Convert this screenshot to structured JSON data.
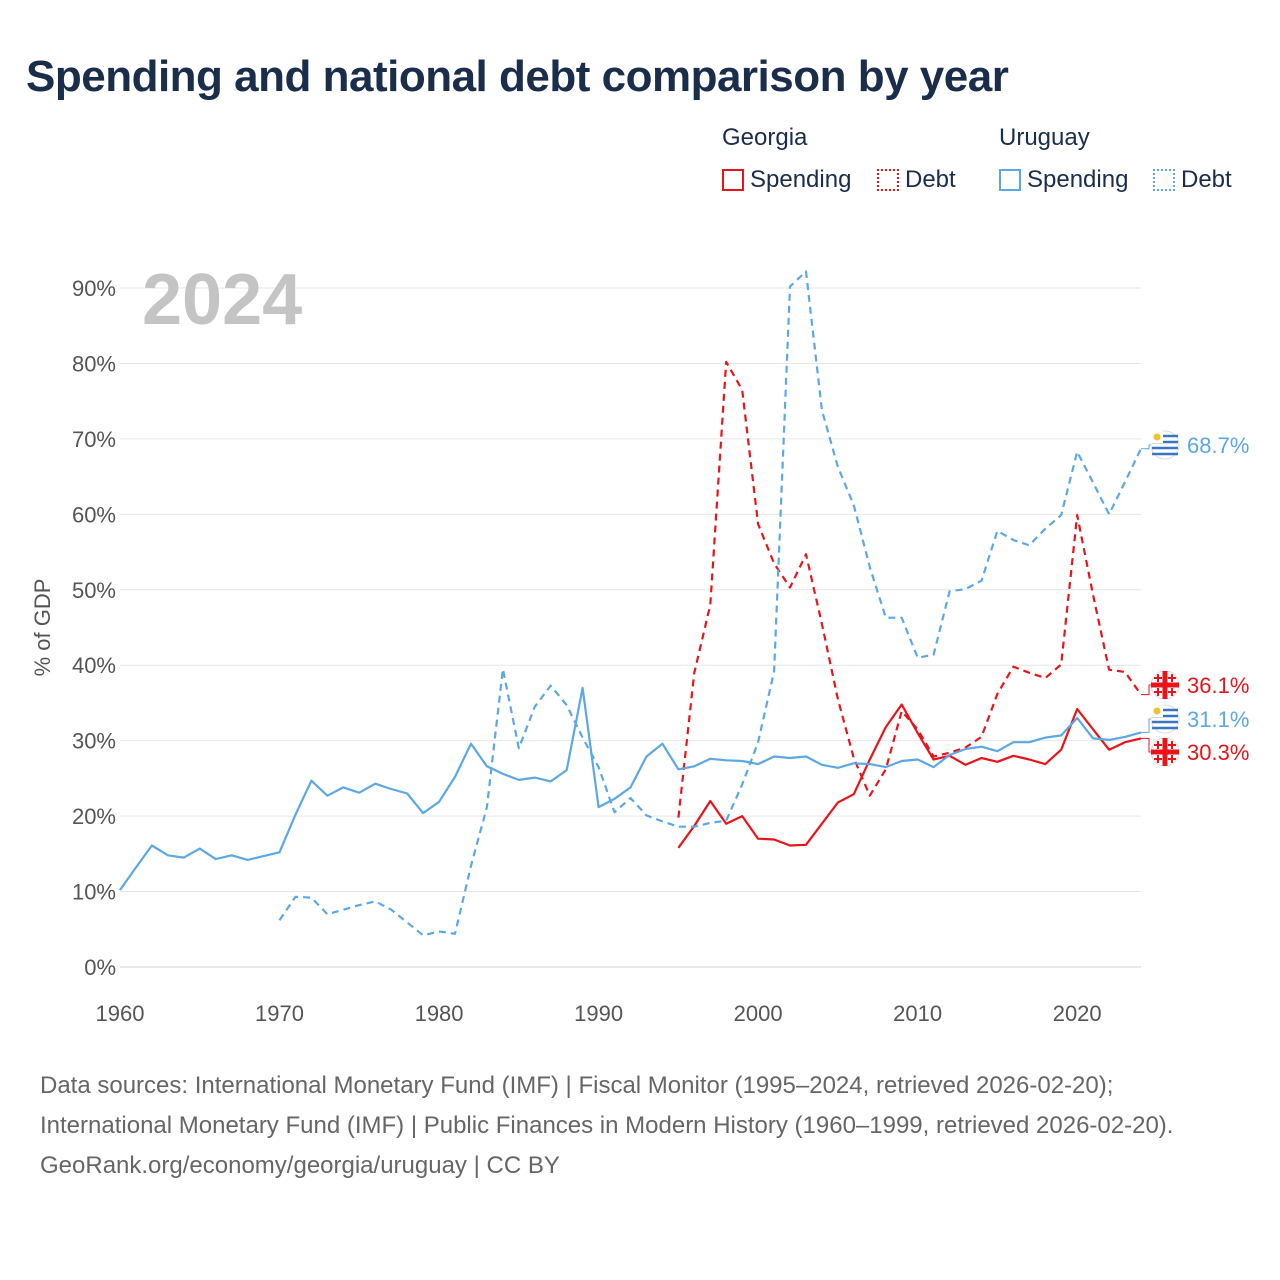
{
  "title": "Spending and national debt comparison by year",
  "legend": {
    "groups": [
      {
        "name": "Georgia",
        "color": "#e8141a",
        "spending_label": "Spending",
        "debt_label": "Debt"
      },
      {
        "name": "Uruguay",
        "color": "#5ca7e5",
        "spending_label": "Spending",
        "debt_label": "Debt"
      }
    ]
  },
  "footer": {
    "sources": "Data sources: International Monetary Fund (IMF) | Fiscal Monitor (1995–2024, retrieved 2026-02-20); International Monetary Fund (IMF) | Public Finances in Modern History (1960–1999, retrieved 2026-02-20).",
    "credit": "GeoRank.org/economy/georgia/uruguay | CC BY"
  },
  "chart_data": {
    "type": "line",
    "year_label": "2024",
    "ylabel": "% of GDP",
    "xlabel": "",
    "xlim": [
      1960,
      2024
    ],
    "ylim": [
      0,
      90
    ],
    "x_ticks": [
      1960,
      1970,
      1980,
      1990,
      2000,
      2010,
      2020
    ],
    "y_ticks": [
      0,
      10,
      20,
      30,
      40,
      50,
      60,
      70,
      80,
      90
    ],
    "y_tick_labels": [
      "0%",
      "10%",
      "20%",
      "30%",
      "40%",
      "50%",
      "60%",
      "70%",
      "80%",
      "90%"
    ],
    "series": [
      {
        "name": "Georgia Spending",
        "country": "Georgia",
        "metric": "Spending",
        "color": "#e8141a",
        "dash": "solid",
        "end_label": "30.3%",
        "x": [
          1995,
          1996,
          1997,
          1998,
          1999,
          2000,
          2001,
          2002,
          2003,
          2004,
          2005,
          2006,
          2007,
          2008,
          2009,
          2010,
          2011,
          2012,
          2013,
          2014,
          2015,
          2016,
          2017,
          2018,
          2019,
          2020,
          2021,
          2022,
          2023,
          2024
        ],
        "values": [
          15.8,
          18.7,
          22.0,
          19.0,
          20.0,
          17.0,
          16.9,
          16.1,
          16.2,
          19.0,
          21.8,
          22.9,
          27.5,
          31.8,
          34.8,
          31.0,
          27.5,
          28.0,
          26.8,
          27.7,
          27.2,
          28.0,
          27.5,
          26.9,
          28.8,
          34.2,
          31.5,
          28.8,
          29.8,
          30.3
        ]
      },
      {
        "name": "Georgia Debt",
        "country": "Georgia",
        "metric": "Debt",
        "color": "#e8141a",
        "dash": "dashed",
        "end_label": "36.1%",
        "x": [
          1995,
          1996,
          1997,
          1998,
          1999,
          2000,
          2001,
          2002,
          2003,
          2004,
          2005,
          2006,
          2007,
          2008,
          2009,
          2010,
          2011,
          2012,
          2013,
          2014,
          2015,
          2016,
          2017,
          2018,
          2019,
          2020,
          2021,
          2022,
          2023,
          2024
        ],
        "values": [
          19.8,
          39.0,
          48.0,
          80.2,
          76.5,
          58.7,
          53.5,
          50.3,
          54.7,
          45.5,
          35.5,
          27.7,
          22.7,
          26.2,
          33.9,
          31.5,
          27.9,
          28.4,
          29.1,
          30.5,
          36.2,
          39.8,
          39.0,
          38.3,
          40.1,
          59.9,
          49.3,
          39.4,
          39.1,
          36.1
        ]
      },
      {
        "name": "Uruguay Spending",
        "country": "Uruguay",
        "metric": "Spending",
        "color": "#5ca7e5",
        "dash": "solid",
        "end_label": "31.1%",
        "x": [
          1960,
          1961,
          1962,
          1963,
          1964,
          1965,
          1966,
          1967,
          1968,
          1969,
          1970,
          1971,
          1972,
          1973,
          1974,
          1975,
          1976,
          1977,
          1978,
          1979,
          1980,
          1981,
          1982,
          1983,
          1984,
          1985,
          1986,
          1987,
          1988,
          1989,
          1990,
          1991,
          1992,
          1993,
          1994,
          1995,
          1996,
          1997,
          1998,
          1999,
          2000,
          2001,
          2002,
          2003,
          2004,
          2005,
          2006,
          2007,
          2008,
          2009,
          2010,
          2011,
          2012,
          2013,
          2014,
          2015,
          2016,
          2017,
          2018,
          2019,
          2020,
          2021,
          2022,
          2023,
          2024
        ],
        "values": [
          10.2,
          13.2,
          16.1,
          14.8,
          14.5,
          15.7,
          14.3,
          14.8,
          14.2,
          14.7,
          15.2,
          20.2,
          24.7,
          22.7,
          23.8,
          23.1,
          24.3,
          23.6,
          23.0,
          20.4,
          21.9,
          25.2,
          29.6,
          26.6,
          25.6,
          24.8,
          25.1,
          24.6,
          26.1,
          37.0,
          21.2,
          22.3,
          23.8,
          27.9,
          29.6,
          26.2,
          26.6,
          27.6,
          27.4,
          27.3,
          26.9,
          27.9,
          27.7,
          27.9,
          26.8,
          26.4,
          27.0,
          26.9,
          26.5,
          27.3,
          27.5,
          26.5,
          28.1,
          28.9,
          29.2,
          28.6,
          29.8,
          29.8,
          30.4,
          30.7,
          33.0,
          30.3,
          30.1,
          30.5,
          31.1
        ]
      },
      {
        "name": "Uruguay Debt",
        "country": "Uruguay",
        "metric": "Debt",
        "color": "#5ca7e5",
        "dash": "dashed",
        "end_label": "68.7%",
        "x": [
          1970,
          1971,
          1972,
          1973,
          1974,
          1975,
          1976,
          1977,
          1978,
          1979,
          1980,
          1981,
          1982,
          1983,
          1984,
          1985,
          1986,
          1987,
          1988,
          1989,
          1990,
          1991,
          1992,
          1993,
          1994,
          1995,
          1996,
          1997,
          1998,
          1999,
          2000,
          2001,
          2002,
          2003,
          2004,
          2005,
          2006,
          2007,
          2008,
          2009,
          2010,
          2011,
          2012,
          2013,
          2014,
          2015,
          2016,
          2017,
          2018,
          2019,
          2020,
          2021,
          2022,
          2023,
          2024
        ],
        "values": [
          6.2,
          9.3,
          9.2,
          7.0,
          7.6,
          8.2,
          8.7,
          7.6,
          5.9,
          4.2,
          4.7,
          4.4,
          13.4,
          21.2,
          39.5,
          29.0,
          34.5,
          37.3,
          34.7,
          30.4,
          26.5,
          20.5,
          22.4,
          20.1,
          19.3,
          18.6,
          18.6,
          19.1,
          19.4,
          24.2,
          29.8,
          39.2,
          90.2,
          92.2,
          73.8,
          66.3,
          61.2,
          53.0,
          46.3,
          46.3,
          41.0,
          41.4,
          49.8,
          50.1,
          51.2,
          57.8,
          56.6,
          55.9,
          58.1,
          59.9,
          68.3,
          64.2,
          60.0,
          64.3,
          68.7
        ]
      }
    ]
  }
}
